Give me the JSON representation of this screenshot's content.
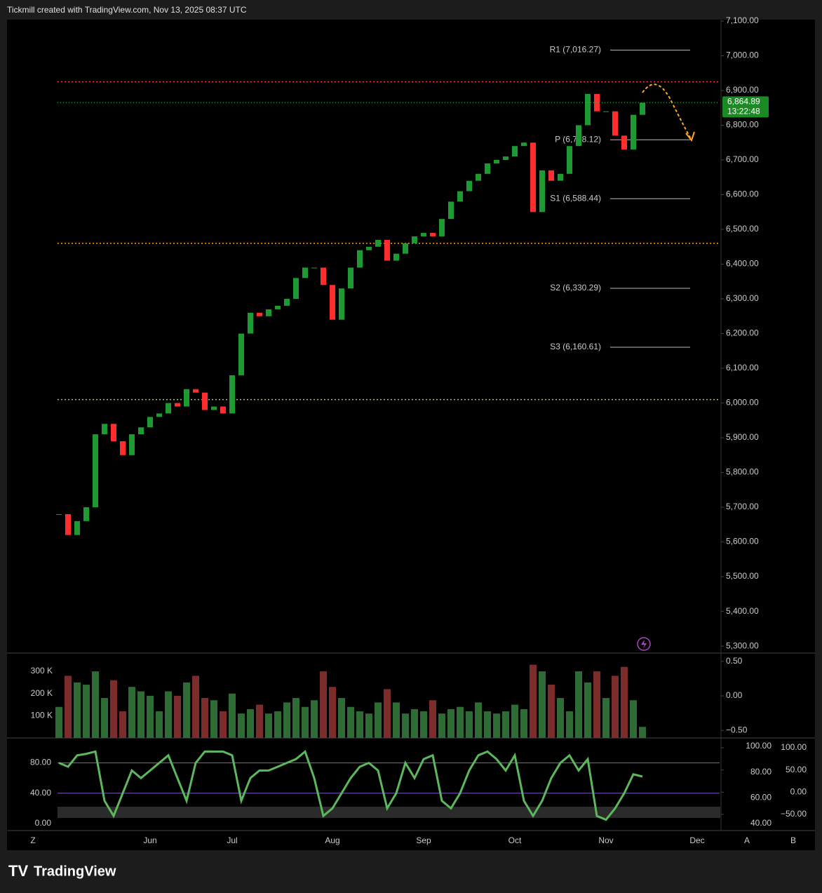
{
  "header": "Tickmill created with TradingView.com, Nov 13, 2025 08:37 UTC",
  "brand": "TradingView",
  "corner_labels": [
    "Z",
    "A",
    "B"
  ],
  "chart_data": [
    {
      "type": "candlestick",
      "categories": [
        null,
        null,
        null,
        null,
        null,
        null,
        null,
        null,
        null,
        null,
        "Jun",
        null,
        null,
        null,
        null,
        null,
        null,
        null,
        null,
        "Jul",
        null,
        null,
        null,
        null,
        null,
        null,
        null,
        null,
        null,
        null,
        "Aug",
        null,
        null,
        null,
        null,
        null,
        null,
        null,
        null,
        null,
        "Sep",
        null,
        null,
        null,
        null,
        null,
        null,
        null,
        null,
        null,
        "Oct",
        null,
        null,
        null,
        null,
        null,
        null,
        null,
        null,
        null,
        "Nov",
        null,
        null,
        null,
        null,
        null,
        null,
        null,
        null,
        null,
        "Dec"
      ],
      "values": [
        5680,
        5620,
        5660,
        5700,
        5910,
        5940,
        5890,
        5850,
        5910,
        5930,
        5960,
        5970,
        6000,
        5990,
        6040,
        6030,
        5980,
        5990,
        5970,
        6080,
        6200,
        6260,
        6250,
        6270,
        6280,
        6300,
        6360,
        6390,
        6390,
        6340,
        6240,
        6330,
        6390,
        6440,
        6450,
        6470,
        6410,
        6430,
        6460,
        6480,
        6490,
        6480,
        6530,
        6580,
        6610,
        6640,
        6660,
        6690,
        6700,
        6710,
        6740,
        6750,
        6550,
        6670,
        6640,
        6660,
        6740,
        6800,
        6890,
        6840,
        6840,
        6770,
        6730,
        6830,
        6864.89,
        null,
        null,
        null,
        null,
        null,
        null
      ],
      "up_color": "#1e9a32",
      "down_color": "#ff2d2d",
      "ylim": [
        5282,
        7104
      ],
      "yticks": [
        {
          "value": 5300,
          "label": "5,300.00"
        },
        {
          "value": 5400,
          "label": "5,400.00"
        },
        {
          "value": 5500,
          "label": "5,500.00"
        },
        {
          "value": 5600,
          "label": "5,600.00"
        },
        {
          "value": 5700,
          "label": "5,700.00"
        },
        {
          "value": 5800,
          "label": "5,800.00"
        },
        {
          "value": 5900,
          "label": "5,900.00"
        },
        {
          "value": 6000,
          "label": "6,000.00"
        },
        {
          "value": 6100,
          "label": "6,100.00"
        },
        {
          "value": 6200,
          "label": "6,200.00"
        },
        {
          "value": 6300,
          "label": "6,300.00"
        },
        {
          "value": 6400,
          "label": "6,400.00"
        },
        {
          "value": 6500,
          "label": "6,500.00"
        },
        {
          "value": 6600,
          "label": "6,600.00"
        },
        {
          "value": 6700,
          "label": "6,700.00"
        },
        {
          "value": 6800,
          "label": "6,800.00"
        },
        {
          "value": 6900,
          "label": "6,900.00"
        },
        {
          "value": 7000,
          "label": "7,000.00"
        },
        {
          "value": 7100,
          "label": "7,100.00"
        }
      ],
      "levels": [
        {
          "value": 7016.27,
          "label": "R1 (7,016.27)"
        },
        {
          "value": 6758.12,
          "label": "P (6,758.12)"
        },
        {
          "value": 6588.44,
          "label": "S1 (6,588.44)"
        },
        {
          "value": 6330.29,
          "label": "S2 (6,330.29)"
        },
        {
          "value": 6160.61,
          "label": "S3 (6,160.61)"
        }
      ],
      "hlines": [
        {
          "value": 6925,
          "color": "#f23645"
        },
        {
          "value": 6460,
          "color": "#ff9800"
        },
        {
          "value": 6010,
          "color": "#9ccc65"
        }
      ],
      "last_price": {
        "value": 6864.89,
        "label": "6,864.89"
      },
      "countdown": "13:22:48"
    },
    {
      "type": "bar",
      "values": [
        140000,
        280000,
        250000,
        240000,
        300000,
        180000,
        260000,
        120000,
        230000,
        210000,
        190000,
        120000,
        210000,
        190000,
        250000,
        280000,
        180000,
        170000,
        120000,
        200000,
        110000,
        130000,
        150000,
        110000,
        120000,
        160000,
        180000,
        140000,
        170000,
        300000,
        230000,
        180000,
        140000,
        120000,
        110000,
        160000,
        220000,
        160000,
        110000,
        130000,
        120000,
        170000,
        110000,
        130000,
        140000,
        120000,
        160000,
        120000,
        110000,
        120000,
        150000,
        130000,
        330000,
        300000,
        240000,
        180000,
        120000,
        300000,
        250000,
        300000,
        180000,
        280000,
        320000,
        170000,
        50000,
        null,
        null,
        null,
        null,
        null,
        null
      ],
      "up_color": "#2f6b34",
      "down_color": "#7d2c2c",
      "ylim": [
        0,
        376000
      ],
      "yticks": [
        {
          "value": 100000,
          "label": "100 K"
        },
        {
          "value": 200000,
          "label": "200 K"
        },
        {
          "value": 300000,
          "label": "300 K"
        }
      ],
      "y2lim": [
        -0.61,
        0.6
      ],
      "y2ticks": [
        {
          "value": 0.5,
          "label": "0.50"
        },
        {
          "value": 0,
          "label": "0.00"
        },
        {
          "value": -0.5,
          "label": "−0.50"
        }
      ]
    },
    {
      "type": "line",
      "values": [
        80,
        75,
        90,
        92,
        95,
        30,
        10,
        40,
        70,
        60,
        70,
        80,
        90,
        60,
        30,
        80,
        95,
        95,
        95,
        90,
        30,
        60,
        70,
        70,
        75,
        80,
        85,
        95,
        60,
        10,
        20,
        40,
        60,
        75,
        80,
        70,
        20,
        40,
        80,
        60,
        85,
        90,
        30,
        20,
        40,
        70,
        90,
        95,
        85,
        70,
        90,
        30,
        10,
        30,
        60,
        80,
        90,
        70,
        85,
        10,
        5,
        20,
        40,
        65,
        62,
        null,
        null,
        null,
        null,
        null,
        null
      ],
      "color": "#5cb85c",
      "ylim": [
        -8.4,
        112
      ],
      "yticks": [
        {
          "value": 0,
          "label": "0.00"
        },
        {
          "value": 40,
          "label": "40.00"
        },
        {
          "value": 80,
          "label": "80.00"
        }
      ],
      "levels": [
        {
          "value": 80,
          "color": "#f23645"
        },
        {
          "value": 40,
          "color": "#7e57c2"
        }
      ],
      "y2lim": [
        35.1,
        106
      ],
      "y2ticks": [
        {
          "value": 40,
          "label": "40.00"
        },
        {
          "value": 60,
          "label": "60.00"
        },
        {
          "value": 80,
          "label": "80.00"
        },
        {
          "value": 100,
          "label": "100.00"
        }
      ],
      "y3lim": [
        -85,
        120.6
      ],
      "y3ticks": [
        {
          "value": -50,
          "label": "−50.00"
        },
        {
          "value": 0,
          "label": "0.00"
        },
        {
          "value": 50,
          "label": "50.00"
        },
        {
          "value": 100,
          "label": "100.00"
        }
      ]
    }
  ]
}
